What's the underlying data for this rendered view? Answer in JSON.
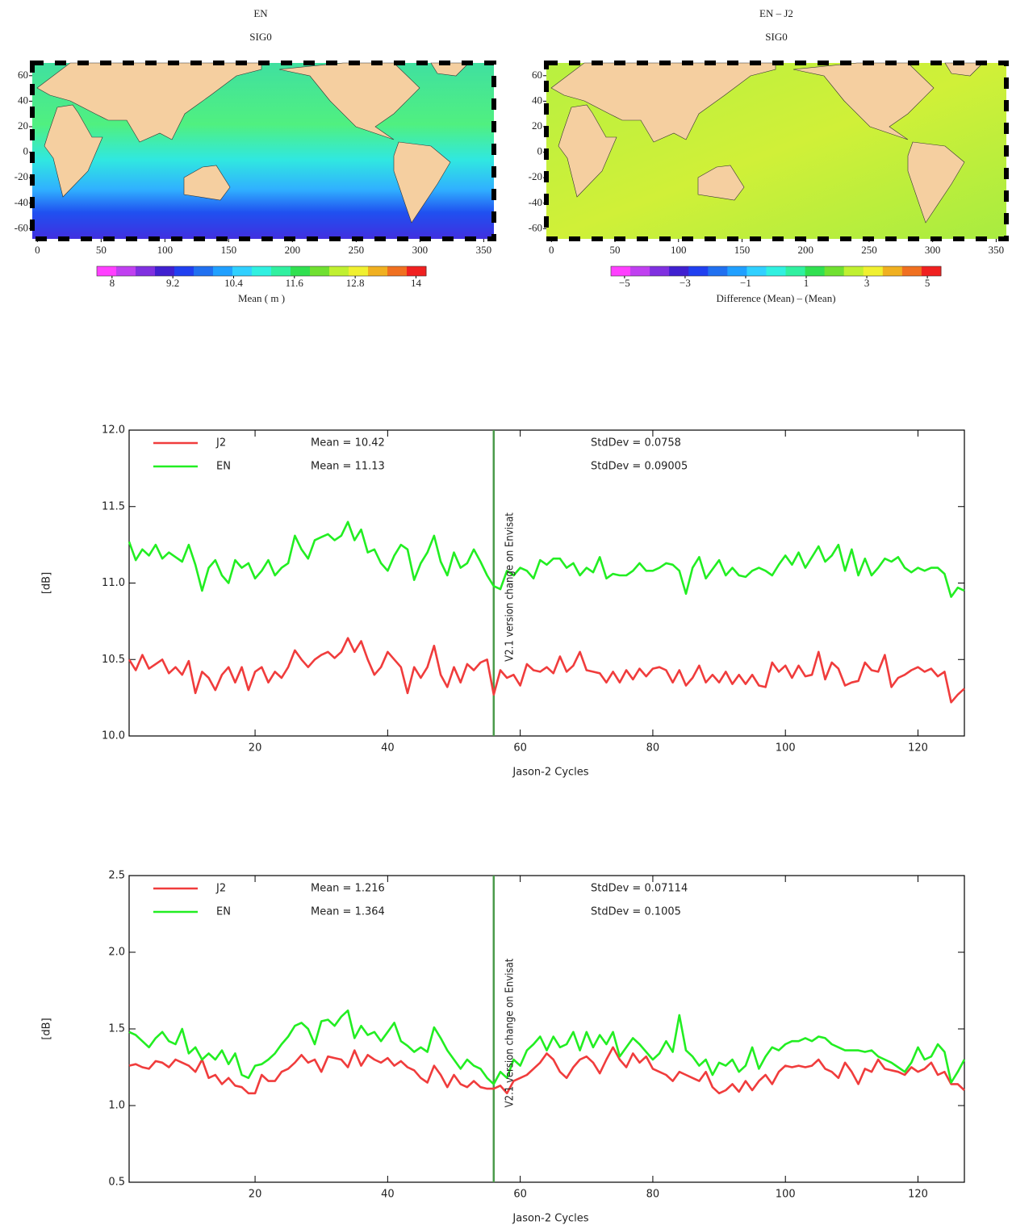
{
  "chart_data": [
    {
      "type": "map",
      "title": "EN",
      "subtitle": "SIG0",
      "xlim": [
        -4,
        358
      ],
      "xticks": [
        0,
        50,
        100,
        150,
        200,
        250,
        300,
        350
      ],
      "ylim": [
        -68,
        70
      ],
      "yticks": [
        -60,
        -40,
        -20,
        0,
        20,
        40,
        60
      ],
      "colorbar": {
        "label": "Mean ( m )",
        "lim": [
          7.7,
          14.2
        ],
        "ticks": [
          8,
          9.2,
          10.4,
          11.6,
          12.8,
          14
        ],
        "colors": [
          "#ff40ff",
          "#c040f0",
          "#8030e0",
          "#4020d0",
          "#2040f0",
          "#2070f0",
          "#20a0ff",
          "#30d0ff",
          "#30f0e0",
          "#30f0a0",
          "#30e050",
          "#70e030",
          "#c0f030",
          "#f0f030",
          "#f0b020",
          "#f07020",
          "#f02020"
        ]
      }
    },
    {
      "type": "map",
      "title": "EN – J2",
      "subtitle": "SIG0",
      "xlim": [
        -4,
        358
      ],
      "xticks": [
        0,
        50,
        100,
        150,
        200,
        250,
        300,
        350
      ],
      "ylim": [
        -68,
        70
      ],
      "yticks": [
        -60,
        -40,
        -20,
        0,
        20,
        40,
        60
      ],
      "colorbar": {
        "label": "Difference (Mean) – (Mean)",
        "lim": [
          -5.45,
          5.45
        ],
        "ticks": [
          {
            "value": -5,
            "label": "−5"
          },
          {
            "value": -3,
            "label": "−3"
          },
          {
            "value": -1,
            "label": "−1"
          },
          1,
          3,
          5
        ],
        "colors": [
          "#ff40ff",
          "#c040f0",
          "#8030e0",
          "#4020d0",
          "#2040f0",
          "#2070f0",
          "#20a0ff",
          "#30d0ff",
          "#30f0e0",
          "#30f0a0",
          "#30e050",
          "#70e030",
          "#c0f030",
          "#f0f030",
          "#f0b020",
          "#f07020",
          "#f02020"
        ]
      }
    },
    {
      "type": "line",
      "x_label": "Jason-2 Cycles",
      "y_label": "[dB]",
      "xlim": [
        1,
        127
      ],
      "xticks": [
        20,
        40,
        60,
        80,
        100,
        120
      ],
      "ylim": [
        10,
        12
      ],
      "yticks": [
        {
          "value": 10,
          "label": "10.0"
        },
        10.5,
        {
          "value": 11,
          "label": "11.0"
        },
        11.5,
        {
          "value": 12,
          "label": "12.0"
        }
      ],
      "annotation": {
        "x": 56,
        "text": "V2.1 version change on Envisat",
        "color": "#4a9a4a"
      },
      "x": [
        1,
        2,
        3,
        4,
        5,
        6,
        7,
        8,
        9,
        10,
        11,
        12,
        13,
        14,
        15,
        16,
        17,
        18,
        19,
        20,
        21,
        22,
        23,
        24,
        25,
        26,
        27,
        28,
        29,
        30,
        31,
        32,
        33,
        34,
        35,
        36,
        37,
        38,
        39,
        40,
        41,
        42,
        43,
        44,
        45,
        46,
        47,
        48,
        49,
        50,
        51,
        52,
        53,
        54,
        55,
        56,
        57,
        58,
        59,
        60,
        61,
        62,
        63,
        64,
        65,
        66,
        67,
        68,
        69,
        70,
        71,
        72,
        73,
        74,
        75,
        76,
        77,
        78,
        79,
        80,
        81,
        82,
        83,
        84,
        85,
        86,
        87,
        88,
        89,
        90,
        91,
        92,
        93,
        94,
        95,
        96,
        97,
        98,
        99,
        100,
        101,
        102,
        103,
        104,
        105,
        106,
        107,
        108,
        109,
        110,
        111,
        112,
        113,
        114,
        115,
        116,
        117,
        118,
        119,
        120,
        121,
        122,
        123,
        124,
        125,
        126,
        127
      ],
      "series": [
        {
          "name": "J2",
          "color": "#f03c3c",
          "mean_label": "Mean = 10.42",
          "std_label": "StdDev = 0.0758",
          "values": [
            10.5,
            10.43,
            10.53,
            10.44,
            10.47,
            10.5,
            10.41,
            10.45,
            10.4,
            10.49,
            10.28,
            10.42,
            10.38,
            10.3,
            10.4,
            10.45,
            10.35,
            10.45,
            10.3,
            10.42,
            10.45,
            10.35,
            10.42,
            10.38,
            10.45,
            10.56,
            10.5,
            10.45,
            10.5,
            10.53,
            10.55,
            10.51,
            10.55,
            10.64,
            10.55,
            10.62,
            10.5,
            10.4,
            10.45,
            10.55,
            10.5,
            10.45,
            10.28,
            10.45,
            10.38,
            10.45,
            10.59,
            10.4,
            10.32,
            10.45,
            10.35,
            10.47,
            10.43,
            10.48,
            10.5,
            10.27,
            10.43,
            10.38,
            10.4,
            10.33,
            10.47,
            10.43,
            10.42,
            10.45,
            10.41,
            10.52,
            10.42,
            10.46,
            10.55,
            10.43,
            10.42,
            10.41,
            10.35,
            10.42,
            10.35,
            10.43,
            10.37,
            10.44,
            10.39,
            10.44,
            10.45,
            10.43,
            10.35,
            10.43,
            10.33,
            10.38,
            10.46,
            10.35,
            10.4,
            10.35,
            10.42,
            10.34,
            10.4,
            10.34,
            10.4,
            10.33,
            10.32,
            10.48,
            10.42,
            10.46,
            10.38,
            10.46,
            10.39,
            10.4,
            10.55,
            10.37,
            10.48,
            10.44,
            10.33,
            10.35,
            10.36,
            10.48,
            10.43,
            10.42,
            10.53,
            10.32,
            10.38,
            10.4,
            10.43,
            10.45,
            10.42,
            10.44,
            10.39,
            10.42,
            10.22,
            10.27,
            10.31
          ]
        },
        {
          "name": "EN",
          "color": "#22ee22",
          "mean_label": "Mean = 11.13",
          "std_label": "StdDev = 0.09005",
          "values": [
            11.27,
            11.15,
            11.22,
            11.18,
            11.25,
            11.16,
            11.2,
            11.17,
            11.14,
            11.25,
            11.12,
            10.95,
            11.1,
            11.15,
            11.05,
            11.0,
            11.15,
            11.1,
            11.13,
            11.03,
            11.08,
            11.15,
            11.05,
            11.1,
            11.13,
            11.31,
            11.22,
            11.16,
            11.28,
            11.3,
            11.32,
            11.28,
            11.31,
            11.4,
            11.28,
            11.35,
            11.2,
            11.22,
            11.13,
            11.08,
            11.18,
            11.25,
            11.22,
            11.02,
            11.13,
            11.2,
            11.31,
            11.14,
            11.05,
            11.2,
            11.1,
            11.13,
            11.22,
            11.14,
            11.05,
            10.98,
            10.96,
            11.08,
            11.05,
            11.1,
            11.08,
            11.03,
            11.15,
            11.12,
            11.16,
            11.16,
            11.1,
            11.13,
            11.05,
            11.1,
            11.07,
            11.17,
            11.03,
            11.06,
            11.05,
            11.05,
            11.08,
            11.13,
            11.08,
            11.08,
            11.1,
            11.13,
            11.12,
            11.08,
            10.93,
            11.1,
            11.17,
            11.03,
            11.09,
            11.15,
            11.05,
            11.1,
            11.05,
            11.04,
            11.08,
            11.1,
            11.08,
            11.05,
            11.12,
            11.18,
            11.12,
            11.2,
            11.1,
            11.17,
            11.24,
            11.14,
            11.18,
            11.25,
            11.08,
            11.22,
            11.05,
            11.16,
            11.05,
            11.1,
            11.16,
            11.14,
            11.17,
            11.1,
            11.07,
            11.1,
            11.08,
            11.1,
            11.1,
            11.06,
            10.91,
            10.97,
            10.95
          ]
        }
      ]
    },
    {
      "type": "line",
      "x_label": "Jason-2 Cycles",
      "y_label": "[dB]",
      "xlim": [
        1,
        127
      ],
      "xticks": [
        20,
        40,
        60,
        80,
        100,
        120
      ],
      "ylim": [
        0.5,
        2.5
      ],
      "yticks": [
        0.5,
        {
          "value": 1,
          "label": "1.0"
        },
        1.5,
        {
          "value": 2,
          "label": "2.0"
        },
        2.5
      ],
      "annotation": {
        "x": 56,
        "text": "V2.1 version change on Envisat",
        "color": "#4a9a4a"
      },
      "x": [
        1,
        2,
        3,
        4,
        5,
        6,
        7,
        8,
        9,
        10,
        11,
        12,
        13,
        14,
        15,
        16,
        17,
        18,
        19,
        20,
        21,
        22,
        23,
        24,
        25,
        26,
        27,
        28,
        29,
        30,
        31,
        32,
        33,
        34,
        35,
        36,
        37,
        38,
        39,
        40,
        41,
        42,
        43,
        44,
        45,
        46,
        47,
        48,
        49,
        50,
        51,
        52,
        53,
        54,
        55,
        56,
        57,
        58,
        59,
        60,
        61,
        62,
        63,
        64,
        65,
        66,
        67,
        68,
        69,
        70,
        71,
        72,
        73,
        74,
        75,
        76,
        77,
        78,
        79,
        80,
        81,
        82,
        83,
        84,
        85,
        86,
        87,
        88,
        89,
        90,
        91,
        92,
        93,
        94,
        95,
        96,
        97,
        98,
        99,
        100,
        101,
        102,
        103,
        104,
        105,
        106,
        107,
        108,
        109,
        110,
        111,
        112,
        113,
        114,
        115,
        116,
        117,
        118,
        119,
        120,
        121,
        122,
        123,
        124,
        125,
        126,
        127
      ],
      "series": [
        {
          "name": "J2",
          "color": "#f03c3c",
          "mean_label": "Mean = 1.216",
          "std_label": "StdDev = 0.07114",
          "values": [
            1.26,
            1.27,
            1.25,
            1.24,
            1.29,
            1.28,
            1.25,
            1.3,
            1.28,
            1.26,
            1.22,
            1.3,
            1.18,
            1.2,
            1.14,
            1.18,
            1.13,
            1.12,
            1.08,
            1.08,
            1.2,
            1.16,
            1.16,
            1.22,
            1.24,
            1.28,
            1.33,
            1.28,
            1.3,
            1.22,
            1.32,
            1.31,
            1.3,
            1.25,
            1.36,
            1.26,
            1.33,
            1.3,
            1.28,
            1.31,
            1.26,
            1.29,
            1.25,
            1.23,
            1.18,
            1.15,
            1.26,
            1.2,
            1.12,
            1.2,
            1.14,
            1.12,
            1.16,
            1.12,
            1.11,
            1.11,
            1.13,
            1.08,
            1.16,
            1.18,
            1.2,
            1.24,
            1.28,
            1.34,
            1.3,
            1.22,
            1.18,
            1.25,
            1.3,
            1.32,
            1.28,
            1.21,
            1.3,
            1.38,
            1.3,
            1.25,
            1.34,
            1.28,
            1.32,
            1.24,
            1.22,
            1.2,
            1.16,
            1.22,
            1.2,
            1.18,
            1.16,
            1.22,
            1.12,
            1.08,
            1.1,
            1.14,
            1.09,
            1.16,
            1.1,
            1.16,
            1.2,
            1.14,
            1.22,
            1.26,
            1.25,
            1.26,
            1.25,
            1.26,
            1.3,
            1.24,
            1.22,
            1.18,
            1.28,
            1.22,
            1.14,
            1.24,
            1.22,
            1.3,
            1.24,
            1.23,
            1.22,
            1.2,
            1.25,
            1.22,
            1.24,
            1.28,
            1.2,
            1.22,
            1.14,
            1.14,
            1.1
          ]
        },
        {
          "name": "EN",
          "color": "#22ee22",
          "mean_label": "Mean = 1.364",
          "std_label": "StdDev = 0.1005",
          "values": [
            1.48,
            1.46,
            1.42,
            1.38,
            1.44,
            1.48,
            1.42,
            1.4,
            1.5,
            1.34,
            1.38,
            1.3,
            1.34,
            1.3,
            1.36,
            1.27,
            1.34,
            1.2,
            1.18,
            1.26,
            1.27,
            1.3,
            1.34,
            1.4,
            1.45,
            1.52,
            1.54,
            1.5,
            1.4,
            1.55,
            1.56,
            1.52,
            1.58,
            1.62,
            1.44,
            1.52,
            1.46,
            1.48,
            1.42,
            1.48,
            1.54,
            1.42,
            1.39,
            1.35,
            1.38,
            1.35,
            1.51,
            1.44,
            1.36,
            1.3,
            1.24,
            1.3,
            1.26,
            1.24,
            1.18,
            1.14,
            1.22,
            1.18,
            1.3,
            1.26,
            1.36,
            1.4,
            1.45,
            1.36,
            1.45,
            1.38,
            1.4,
            1.48,
            1.36,
            1.48,
            1.38,
            1.46,
            1.4,
            1.48,
            1.32,
            1.38,
            1.44,
            1.4,
            1.35,
            1.3,
            1.34,
            1.42,
            1.35,
            1.59,
            1.36,
            1.32,
            1.26,
            1.3,
            1.2,
            1.28,
            1.26,
            1.3,
            1.22,
            1.26,
            1.38,
            1.24,
            1.32,
            1.38,
            1.36,
            1.4,
            1.42,
            1.42,
            1.44,
            1.42,
            1.45,
            1.44,
            1.4,
            1.38,
            1.36,
            1.36,
            1.36,
            1.35,
            1.36,
            1.32,
            1.3,
            1.28,
            1.25,
            1.22,
            1.28,
            1.38,
            1.3,
            1.32,
            1.4,
            1.35,
            1.15,
            1.22,
            1.3
          ]
        }
      ]
    }
  ]
}
